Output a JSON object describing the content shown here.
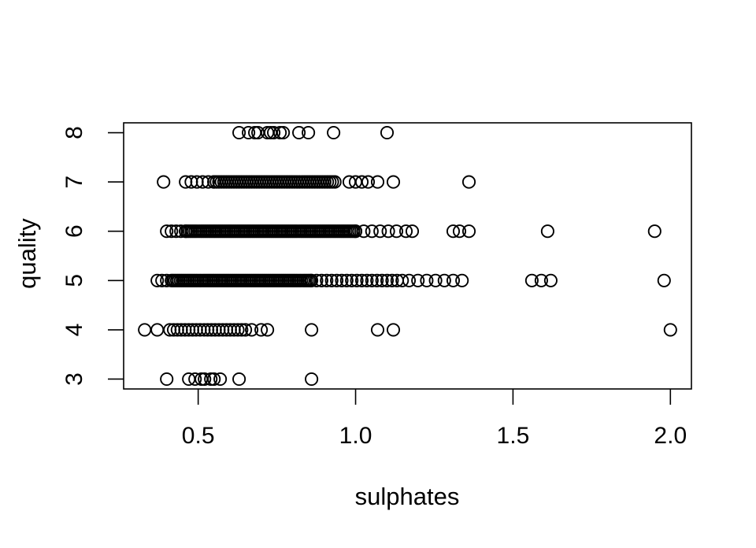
{
  "chart_data": {
    "type": "scatter",
    "title": "",
    "xlabel": "sulphates",
    "ylabel": "quality",
    "xlim": [
      0.2632,
      2.0668
    ],
    "ylim": [
      2.8,
      8.2
    ],
    "x_tick_labels": [
      "0.5",
      "1.0",
      "1.5",
      "2.0"
    ],
    "x_tick_values": [
      0.5,
      1.0,
      1.5,
      2.0
    ],
    "y_tick_labels": [
      "3",
      "4",
      "5",
      "6",
      "7",
      "8"
    ],
    "y_tick_values": [
      3,
      4,
      5,
      6,
      7,
      8
    ],
    "grid": false,
    "legend": "none",
    "marker": "open-circle",
    "marker_color": "#000000",
    "background_color": "#ffffff",
    "note": "R-style base-graphics scatter plot, heavily overplotted in horizontal rows (one row per quality level). 'points' are individually distinguishable circles (sulphates values); 'dense_runs' are [start, end, step] runs of overlapping circles approximating the solid bands.",
    "series": [
      {
        "name": "quality 3",
        "quality": 3,
        "points": [
          0.4,
          0.47,
          0.49,
          0.51,
          0.52,
          0.54,
          0.55,
          0.57,
          0.63,
          0.86
        ],
        "dense_runs": []
      },
      {
        "name": "quality 4",
        "quality": 4,
        "points": [
          0.33,
          0.37,
          0.65,
          0.67,
          0.7,
          0.72,
          0.86,
          1.07,
          1.12,
          2.0
        ],
        "dense_runs": [
          [
            0.41,
            0.64,
            0.012
          ]
        ]
      },
      {
        "name": "quality 5",
        "quality": 5,
        "points": [
          1.56,
          1.59,
          1.62,
          1.98
        ],
        "dense_runs": [
          [
            0.37,
            0.42,
            0.015
          ],
          [
            0.42,
            0.86,
            0.006
          ],
          [
            0.86,
            1.16,
            0.016
          ],
          [
            1.17,
            1.36,
            0.028
          ]
        ]
      },
      {
        "name": "quality 6",
        "quality": 6,
        "points": [
          1.16,
          1.18,
          1.31,
          1.33,
          1.36,
          1.61,
          1.95
        ],
        "dense_runs": [
          [
            0.4,
            0.46,
            0.015
          ],
          [
            0.46,
            1.0,
            0.006
          ],
          [
            1.0,
            1.13,
            0.026
          ]
        ]
      },
      {
        "name": "quality 7",
        "quality": 7,
        "points": [
          0.39,
          0.98,
          1.0,
          1.02,
          1.04,
          1.07,
          1.12,
          1.36
        ],
        "dense_runs": [
          [
            0.46,
            0.56,
            0.018
          ],
          [
            0.55,
            0.94,
            0.008
          ]
        ]
      },
      {
        "name": "quality 8",
        "quality": 8,
        "points": [
          0.63,
          0.66,
          0.68,
          0.69,
          0.72,
          0.73,
          0.74,
          0.76,
          0.77,
          0.82,
          0.85,
          0.93,
          1.1
        ],
        "dense_runs": []
      }
    ]
  }
}
